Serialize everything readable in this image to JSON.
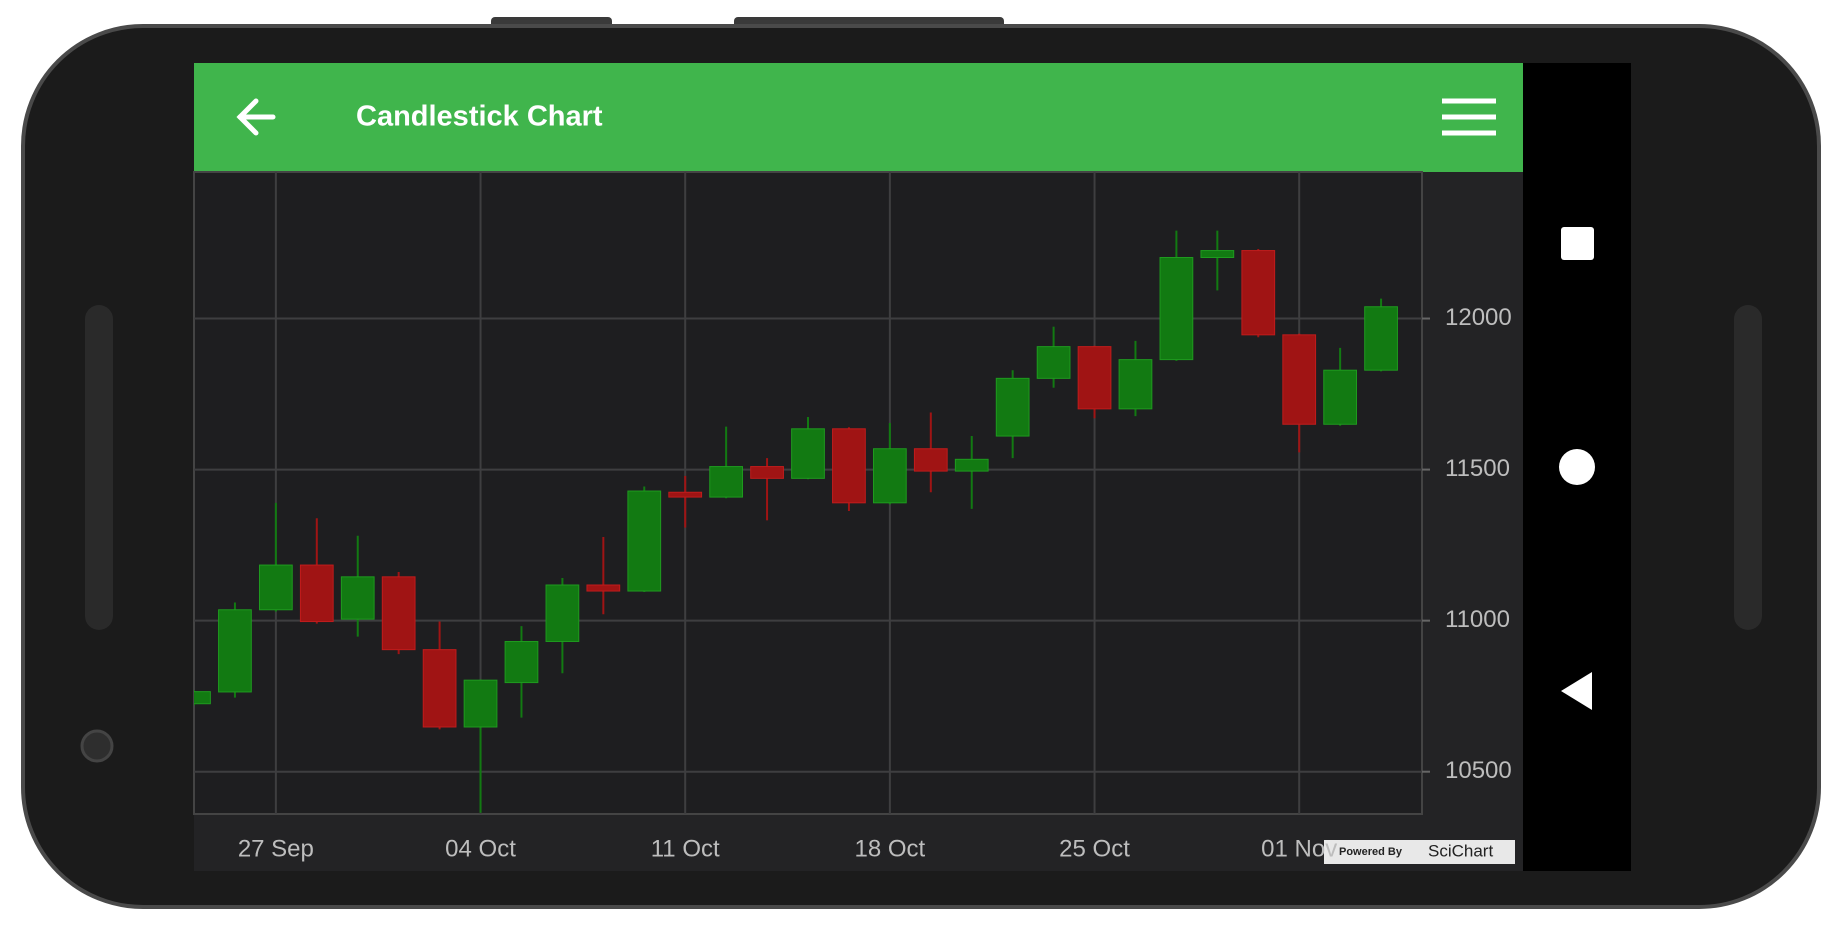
{
  "app_bar": {
    "title": "Candlestick Chart"
  },
  "watermark": {
    "prefix": "Powered By",
    "brand": "SciChart"
  },
  "chart_data": {
    "type": "candlestick",
    "categories": [
      null,
      null,
      "27 Sep",
      null,
      null,
      null,
      null,
      "04 Oct",
      null,
      null,
      null,
      null,
      "11 Oct",
      null,
      null,
      null,
      null,
      "18 Oct",
      null,
      null,
      null,
      null,
      "25 Oct",
      null,
      null,
      null,
      null,
      "01 Nov",
      null,
      null
    ],
    "open": [
      10725,
      10764,
      11036,
      11184,
      11005,
      11145,
      10904,
      10648,
      10795,
      10931,
      11118,
      11098,
      11425,
      11409,
      11510,
      11471,
      11635,
      11390,
      11569,
      11495,
      11611,
      11802,
      11907,
      11701,
      11864,
      12202,
      12225,
      11946,
      11650,
      11829
    ],
    "high": [
      10770,
      11060,
      11390,
      11339,
      11281,
      11161,
      10997,
      10805,
      10982,
      11141,
      11277,
      11444,
      11479,
      11642,
      11538,
      11674,
      11640,
      11654,
      11689,
      11611,
      11829,
      11973,
      11910,
      11926,
      12291,
      12291,
      12230,
      11950,
      11903,
      12066
    ],
    "low": [
      10720,
      10745,
      11030,
      10990,
      10947,
      10889,
      10640,
      10364,
      10679,
      10826,
      11021,
      11095,
      11308,
      11405,
      11332,
      11468,
      11363,
      11385,
      11425,
      11370,
      11538,
      11771,
      11670,
      11677,
      11860,
      12093,
      11938,
      11557,
      11645,
      11825
    ],
    "close": [
      10765,
      11036,
      11184,
      10997,
      11145,
      10904,
      10648,
      10803,
      10931,
      11118,
      11098,
      11429,
      11409,
      11510,
      11471,
      11635,
      11390,
      11569,
      11495,
      11534,
      11802,
      11907,
      11701,
      11864,
      12202,
      12225,
      11946,
      11650,
      11829,
      12039
    ],
    "up_color": "#127a12",
    "down_color": "#a01414",
    "ylim": [
      10360,
      12485
    ],
    "yticks": [
      10500,
      11000,
      11500,
      12000
    ],
    "grid": true
  }
}
